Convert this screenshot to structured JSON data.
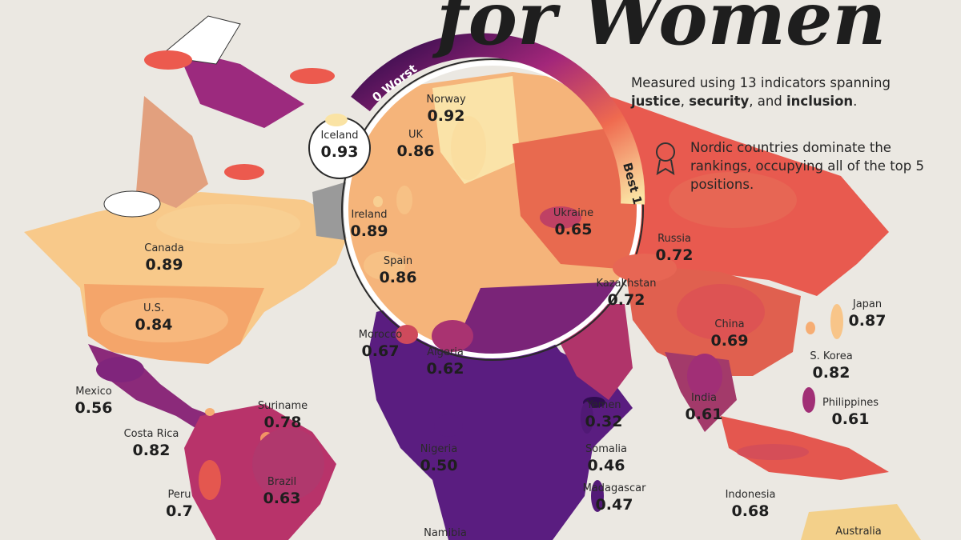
{
  "title": "for Women",
  "scale": {
    "worst": "0 Worst",
    "best": "Best 1"
  },
  "note": [
    "Measured using 13 indicators spanning ",
    "justice",
    ", ",
    "security",
    ", and ",
    "inclusion",
    "."
  ],
  "highlight": "Nordic countries dominate the rankings, occupying all of the top 5 positions.",
  "countries": [
    {
      "name": "Iceland",
      "score": 0.93
    },
    {
      "name": "Norway",
      "score": 0.92
    },
    {
      "name": "UK",
      "score": 0.86
    },
    {
      "name": "Ireland",
      "score": 0.89
    },
    {
      "name": "Spain",
      "score": 0.86
    },
    {
      "name": "Ukraine",
      "score": 0.65
    },
    {
      "name": "Russia",
      "score": 0.72
    },
    {
      "name": "Kazakhstan",
      "score": 0.72
    },
    {
      "name": "Canada",
      "score": 0.89
    },
    {
      "name": "U.S.",
      "score": 0.84
    },
    {
      "name": "Japan",
      "score": 0.87
    },
    {
      "name": "China",
      "score": 0.69
    },
    {
      "name": "S. Korea",
      "score": 0.82
    },
    {
      "name": "Morocco",
      "score": 0.67
    },
    {
      "name": "Algeria",
      "score": 0.62
    },
    {
      "name": "Mexico",
      "score": 0.56
    },
    {
      "name": "India",
      "score": 0.61
    },
    {
      "name": "Philippines",
      "score": 0.61
    },
    {
      "name": "Yemen",
      "score": 0.32
    },
    {
      "name": "Suriname",
      "score": 0.78
    },
    {
      "name": "Costa Rica",
      "score": 0.82
    },
    {
      "name": "Nigeria",
      "score": 0.5,
      "score_label": "0.50"
    },
    {
      "name": "Somalia",
      "score": 0.46
    },
    {
      "name": "Brazil",
      "score": 0.63
    },
    {
      "name": "Madagascar",
      "score": 0.47
    },
    {
      "name": "Peru",
      "score": 0.7
    },
    {
      "name": "Indonesia",
      "score": 0.68
    },
    {
      "name": "Namibia"
    },
    {
      "name": "Australia"
    }
  ]
}
